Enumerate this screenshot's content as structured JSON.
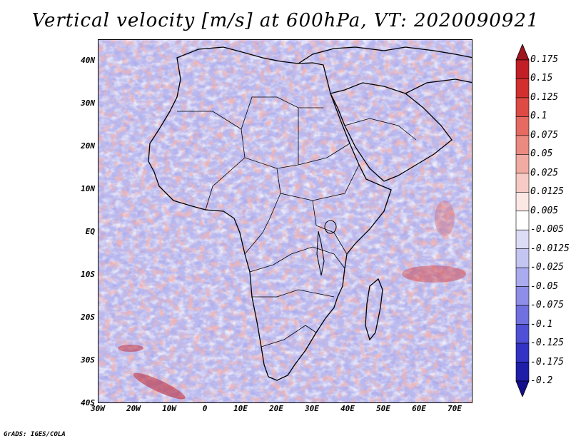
{
  "title": "Vertical velocity [m/s] at 600hPa, VT: 2020090921",
  "footer": "GrADS: IGES/COLA",
  "map": {
    "lat_labels": [
      "40N",
      "30N",
      "20N",
      "10N",
      "EQ",
      "10S",
      "20S",
      "30S",
      "40S"
    ],
    "lat_values": [
      40,
      30,
      20,
      10,
      0,
      -10,
      -20,
      -30,
      -40
    ],
    "lon_labels": [
      "30W",
      "20W",
      "10W",
      "0",
      "10E",
      "20E",
      "30E",
      "40E",
      "50E",
      "60E",
      "70E"
    ],
    "lon_values": [
      -30,
      -20,
      -10,
      0,
      10,
      20,
      30,
      40,
      50,
      60,
      70
    ],
    "lon_range": [
      -30,
      75
    ],
    "lat_range": [
      -40,
      45
    ]
  },
  "colorbar": {
    "labels": [
      "0.175",
      "0.15",
      "0.125",
      "0.1",
      "0.075",
      "0.05",
      "0.025",
      "0.0125",
      "0.005",
      "-0.005",
      "-0.0125",
      "-0.025",
      "-0.05",
      "-0.075",
      "-0.1",
      "-0.125",
      "-0.175",
      "-0.2"
    ],
    "colors": [
      "#a0141e",
      "#c11f25",
      "#d2302f",
      "#de4a44",
      "#e56a62",
      "#eb8a80",
      "#f1aba2",
      "#f6cbc5",
      "#fbe7e4",
      "#ffffff",
      "#dcdcf7",
      "#c5c5f2",
      "#aaaaee",
      "#8e8ee8",
      "#7070e0",
      "#5050d6",
      "#3232c4",
      "#1e1ea8",
      "#140f8c"
    ]
  }
}
